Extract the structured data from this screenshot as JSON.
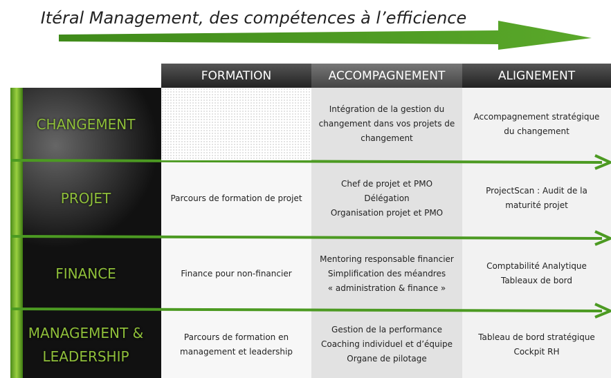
{
  "title": "Itéral Management, des compétences à l’efficience",
  "columns": [
    "FORMATION",
    "ACCOMPAGNEMENT",
    "ALIGNEMENT"
  ],
  "rows": [
    {
      "label": [
        "CHANGEMENT"
      ],
      "cells": [
        [],
        [
          "Intégration de la gestion du",
          "changement dans vos projets de",
          "changement"
        ],
        [
          "Accompagnement stratégique",
          "du changement"
        ]
      ]
    },
    {
      "label": [
        "PROJET"
      ],
      "cells": [
        [
          "Parcours de formation de projet"
        ],
        [
          "Chef de projet et PMO",
          "Délégation",
          "Organisation projet et PMO"
        ],
        [
          "ProjectScan : Audit de la",
          "maturité projet"
        ]
      ]
    },
    {
      "label": [
        "FINANCE"
      ],
      "cells": [
        [
          "Finance pour non-financier"
        ],
        [
          "Mentoring responsable financier",
          "Simplification des méandres",
          "« administration & finance »"
        ],
        [
          "Comptabilité Analytique",
          "Tableaux de bord"
        ]
      ]
    },
    {
      "label": [
        "MANAGEMENT &",
        "LEADERSHIP"
      ],
      "cells": [
        [
          "Parcours de formation en",
          "management et leadership"
        ],
        [
          "Gestion de la performance",
          "Coaching individuel et d’équipe",
          "Organe de pilotage"
        ],
        [
          "Tableau de bord stratégique",
          "Cockpit RH"
        ]
      ]
    }
  ]
}
